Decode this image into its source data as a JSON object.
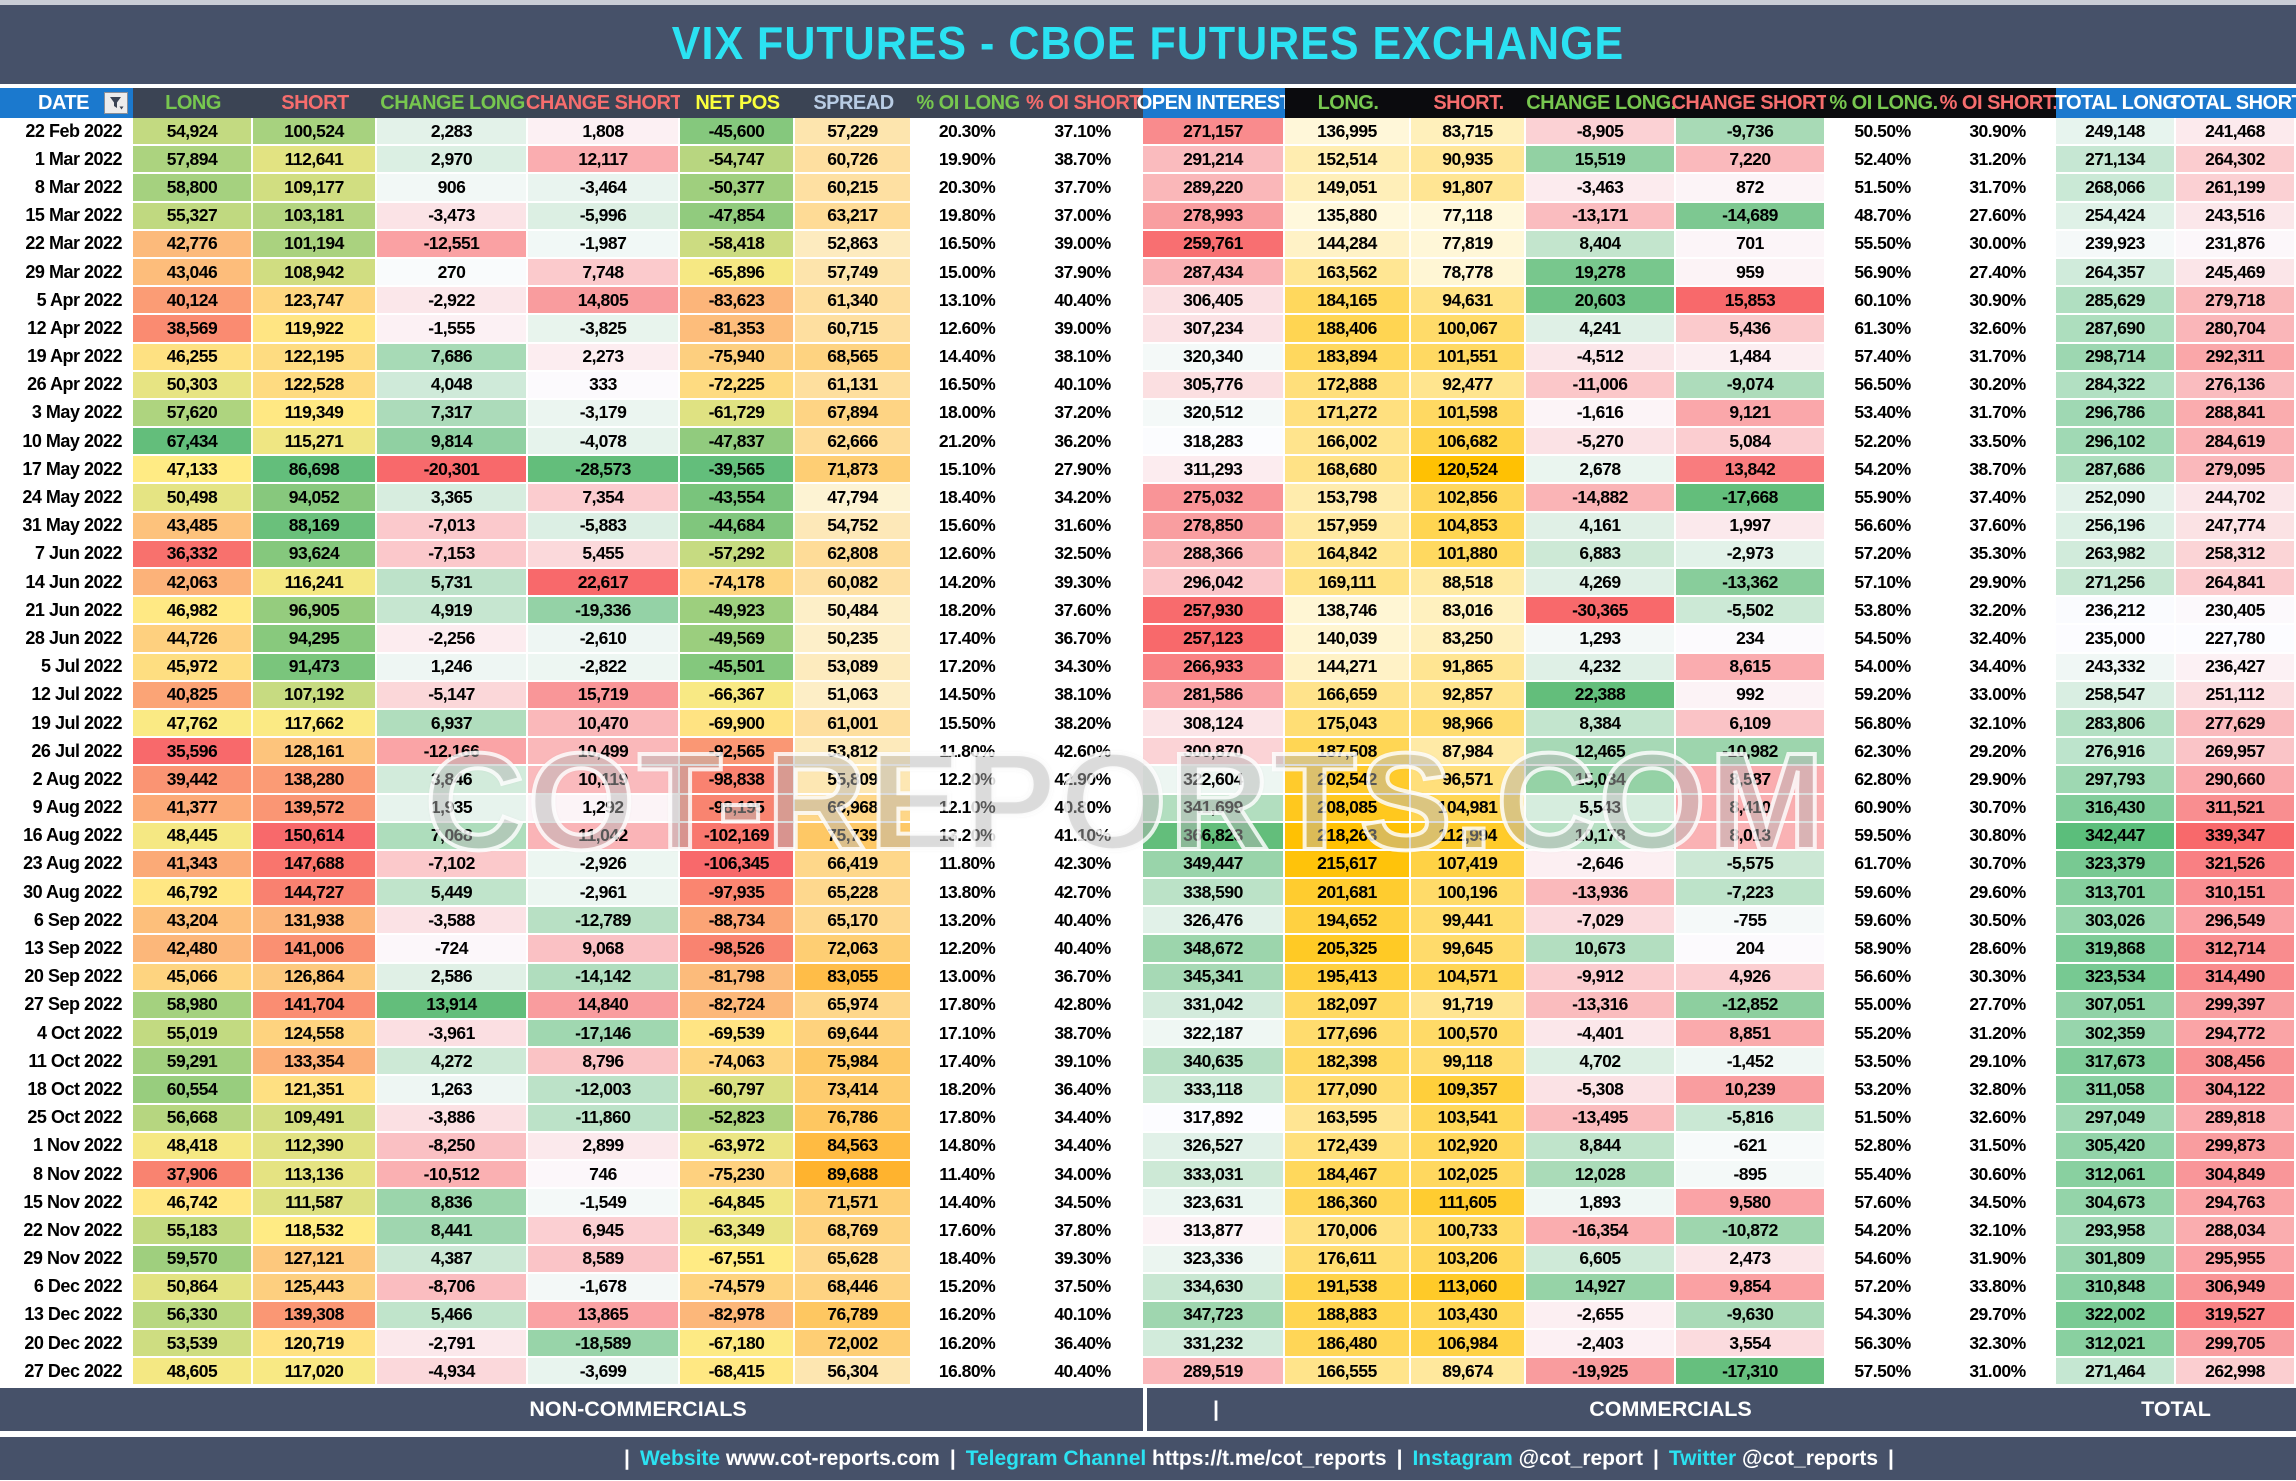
{
  "title": "VIX FUTURES - CBOE FUTURES EXCHANGE",
  "watermark": "COT-REPORTS.COM",
  "groups": {
    "noncommercials": "NON-COMMERCIALS",
    "divider": "|",
    "commercials": "COMMERCIALS",
    "total": "TOTAL"
  },
  "columns": [
    {
      "key": "date",
      "label": "DATE"
    },
    {
      "key": "long",
      "label": "LONG"
    },
    {
      "key": "short",
      "label": "SHORT"
    },
    {
      "key": "chg_long",
      "label": "CHANGE LONG"
    },
    {
      "key": "chg_short",
      "label": "CHANGE SHORT"
    },
    {
      "key": "net_pos",
      "label": "NET POS"
    },
    {
      "key": "spread",
      "label": "SPREAD"
    },
    {
      "key": "pct_oi_long",
      "label": "% OI LONG"
    },
    {
      "key": "pct_oi_short",
      "label": "% OI SHORT"
    },
    {
      "key": "oi",
      "label": "OPEN INTEREST"
    },
    {
      "key": "c_long",
      "label": "LONG."
    },
    {
      "key": "c_short",
      "label": "SHORT."
    },
    {
      "key": "c_chg_long",
      "label": "CHANGE LONG."
    },
    {
      "key": "c_chg_short",
      "label": "CHANGE SHORT."
    },
    {
      "key": "c_pct_oi_long",
      "label": "% OI LONG."
    },
    {
      "key": "c_pct_oi_short",
      "label": "% OI SHORT."
    },
    {
      "key": "tot_long",
      "label": "TOTAL LONG"
    },
    {
      "key": "tot_short",
      "label": "TOTAL SHORT"
    }
  ],
  "footer_links": [
    {
      "label": "Website",
      "value": "www.cot-reports.com"
    },
    {
      "label": "Telegram Channel",
      "value": "https://t.me/cot_reports"
    },
    {
      "label": "Instagram",
      "value": "@cot_report"
    },
    {
      "label": "Twitter",
      "value": "@cot_reports"
    }
  ],
  "colors": {
    "accent_cyan": "#2BE2F2",
    "title_bar": "#465169",
    "header_slate": "#3B4454",
    "header_black": "#0B0B0E",
    "header_blue": "#1B79CE",
    "scale_red": "#F8696B",
    "scale_yellow": "#FFEB84",
    "scale_green": "#63BE7B",
    "scale_white": "#FCFCFF",
    "gold_low": "#FFF8DC",
    "gold_high": "#FFC103",
    "spread_low": "#FDF3D3",
    "spread_high": "#FFB32E",
    "total_green": "#5BBE7B"
  },
  "rows": [
    [
      "22 Feb 2022",
      54924,
      100524,
      2283,
      1808,
      -45600,
      57229,
      "20.30%",
      "37.10%",
      271157,
      136995,
      83715,
      -8905,
      -9736,
      "50.50%",
      "30.90%",
      249148,
      241468
    ],
    [
      "1 Mar 2022",
      57894,
      112641,
      2970,
      12117,
      -54747,
      60726,
      "19.90%",
      "38.70%",
      291214,
      152514,
      90935,
      15519,
      7220,
      "52.40%",
      "31.20%",
      271134,
      264302
    ],
    [
      "8 Mar 2022",
      58800,
      109177,
      906,
      -3464,
      -50377,
      60215,
      "20.30%",
      "37.70%",
      289220,
      149051,
      91807,
      -3463,
      872,
      "51.50%",
      "31.70%",
      268066,
      261199
    ],
    [
      "15 Mar 2022",
      55327,
      103181,
      -3473,
      -5996,
      -47854,
      63217,
      "19.80%",
      "37.00%",
      278993,
      135880,
      77118,
      -13171,
      -14689,
      "48.70%",
      "27.60%",
      254424,
      243516
    ],
    [
      "22 Mar 2022",
      42776,
      101194,
      -12551,
      -1987,
      -58418,
      52863,
      "16.50%",
      "39.00%",
      259761,
      144284,
      77819,
      8404,
      701,
      "55.50%",
      "30.00%",
      239923,
      231876
    ],
    [
      "29 Mar 2022",
      43046,
      108942,
      270,
      7748,
      -65896,
      57749,
      "15.00%",
      "37.90%",
      287434,
      163562,
      78778,
      19278,
      959,
      "56.90%",
      "27.40%",
      264357,
      245469
    ],
    [
      "5 Apr 2022",
      40124,
      123747,
      -2922,
      14805,
      -83623,
      61340,
      "13.10%",
      "40.40%",
      306405,
      184165,
      94631,
      20603,
      15853,
      "60.10%",
      "30.90%",
      285629,
      279718
    ],
    [
      "12 Apr 2022",
      38569,
      119922,
      -1555,
      -3825,
      -81353,
      60715,
      "12.60%",
      "39.00%",
      307234,
      188406,
      100067,
      4241,
      5436,
      "61.30%",
      "32.60%",
      287690,
      280704
    ],
    [
      "19 Apr 2022",
      46255,
      122195,
      7686,
      2273,
      -75940,
      68565,
      "14.40%",
      "38.10%",
      320340,
      183894,
      101551,
      -4512,
      1484,
      "57.40%",
      "31.70%",
      298714,
      292311
    ],
    [
      "26 Apr 2022",
      50303,
      122528,
      4048,
      333,
      -72225,
      61131,
      "16.50%",
      "40.10%",
      305776,
      172888,
      92477,
      -11006,
      -9074,
      "56.50%",
      "30.20%",
      284322,
      276136
    ],
    [
      "3 May 2022",
      57620,
      119349,
      7317,
      -3179,
      -61729,
      67894,
      "18.00%",
      "37.20%",
      320512,
      171272,
      101598,
      -1616,
      9121,
      "53.40%",
      "31.70%",
      296786,
      288841
    ],
    [
      "10 May 2022",
      67434,
      115271,
      9814,
      -4078,
      -47837,
      62666,
      "21.20%",
      "36.20%",
      318283,
      166002,
      106682,
      -5270,
      5084,
      "52.20%",
      "33.50%",
      296102,
      284619
    ],
    [
      "17 May 2022",
      47133,
      86698,
      -20301,
      -28573,
      -39565,
      71873,
      "15.10%",
      "27.90%",
      311293,
      168680,
      120524,
      2678,
      13842,
      "54.20%",
      "38.70%",
      287686,
      279095
    ],
    [
      "24 May 2022",
      50498,
      94052,
      3365,
      7354,
      -43554,
      47794,
      "18.40%",
      "34.20%",
      275032,
      153798,
      102856,
      -14882,
      -17668,
      "55.90%",
      "37.40%",
      252090,
      244702
    ],
    [
      "31 May 2022",
      43485,
      88169,
      -7013,
      -5883,
      -44684,
      54752,
      "15.60%",
      "31.60%",
      278850,
      157959,
      104853,
      4161,
      1997,
      "56.60%",
      "37.60%",
      256196,
      247774
    ],
    [
      "7 Jun 2022",
      36332,
      93624,
      -7153,
      5455,
      -57292,
      62808,
      "12.60%",
      "32.50%",
      288366,
      164842,
      101880,
      6883,
      -2973,
      "57.20%",
      "35.30%",
      263982,
      258312
    ],
    [
      "14 Jun 2022",
      42063,
      116241,
      5731,
      22617,
      -74178,
      60082,
      "14.20%",
      "39.30%",
      296042,
      169111,
      88518,
      4269,
      -13362,
      "57.10%",
      "29.90%",
      271256,
      264841
    ],
    [
      "21 Jun 2022",
      46982,
      96905,
      4919,
      -19336,
      -49923,
      50484,
      "18.20%",
      "37.60%",
      257930,
      138746,
      83016,
      -30365,
      -5502,
      "53.80%",
      "32.20%",
      236212,
      230405
    ],
    [
      "28 Jun 2022",
      44726,
      94295,
      -2256,
      -2610,
      -49569,
      50235,
      "17.40%",
      "36.70%",
      257123,
      140039,
      83250,
      1293,
      234,
      "54.50%",
      "32.40%",
      235000,
      227780
    ],
    [
      "5 Jul 2022",
      45972,
      91473,
      1246,
      -2822,
      -45501,
      53089,
      "17.20%",
      "34.30%",
      266933,
      144271,
      91865,
      4232,
      8615,
      "54.00%",
      "34.40%",
      243332,
      236427
    ],
    [
      "12 Jul 2022",
      40825,
      107192,
      -5147,
      15719,
      -66367,
      51063,
      "14.50%",
      "38.10%",
      281586,
      166659,
      92857,
      22388,
      992,
      "59.20%",
      "33.00%",
      258547,
      251112
    ],
    [
      "19 Jul 2022",
      47762,
      117662,
      6937,
      10470,
      -69900,
      61001,
      "15.50%",
      "38.20%",
      308124,
      175043,
      98966,
      8384,
      6109,
      "56.80%",
      "32.10%",
      283806,
      277629
    ],
    [
      "26 Jul 2022",
      35596,
      128161,
      -12166,
      10499,
      -92565,
      53812,
      "11.80%",
      "42.60%",
      300870,
      187508,
      87984,
      12465,
      -10982,
      "62.30%",
      "29.20%",
      276916,
      269957
    ],
    [
      "2 Aug 2022",
      39442,
      138280,
      3846,
      10119,
      -98838,
      55809,
      "12.20%",
      "42.90%",
      322604,
      202542,
      96571,
      15034,
      8587,
      "62.80%",
      "29.90%",
      297793,
      290660
    ],
    [
      "9 Aug 2022",
      41377,
      139572,
      1935,
      1292,
      -98195,
      66968,
      "12.10%",
      "40.80%",
      341699,
      208085,
      104981,
      5543,
      8410,
      "60.90%",
      "30.70%",
      316430,
      311521
    ],
    [
      "16 Aug 2022",
      48445,
      150614,
      7068,
      11042,
      -102169,
      75739,
      "13.20%",
      "41.10%",
      366823,
      218263,
      112994,
      10178,
      8013,
      "59.50%",
      "30.80%",
      342447,
      339347
    ],
    [
      "23 Aug 2022",
      41343,
      147688,
      -7102,
      -2926,
      -106345,
      66419,
      "11.80%",
      "42.30%",
      349447,
      215617,
      107419,
      -2646,
      -5575,
      "61.70%",
      "30.70%",
      323379,
      321526
    ],
    [
      "30 Aug 2022",
      46792,
      144727,
      5449,
      -2961,
      -97935,
      65228,
      "13.80%",
      "42.70%",
      338590,
      201681,
      100196,
      -13936,
      -7223,
      "59.60%",
      "29.60%",
      313701,
      310151
    ],
    [
      "6 Sep 2022",
      43204,
      131938,
      -3588,
      -12789,
      -88734,
      65170,
      "13.20%",
      "40.40%",
      326476,
      194652,
      99441,
      -7029,
      -755,
      "59.60%",
      "30.50%",
      303026,
      296549
    ],
    [
      "13 Sep 2022",
      42480,
      141006,
      -724,
      9068,
      -98526,
      72063,
      "12.20%",
      "40.40%",
      348672,
      205325,
      99645,
      10673,
      204,
      "58.90%",
      "28.60%",
      319868,
      312714
    ],
    [
      "20 Sep 2022",
      45066,
      126864,
      2586,
      -14142,
      -81798,
      83055,
      "13.00%",
      "36.70%",
      345341,
      195413,
      104571,
      -9912,
      4926,
      "56.60%",
      "30.30%",
      323534,
      314490
    ],
    [
      "27 Sep 2022",
      58980,
      141704,
      13914,
      14840,
      -82724,
      65974,
      "17.80%",
      "42.80%",
      331042,
      182097,
      91719,
      -13316,
      -12852,
      "55.00%",
      "27.70%",
      307051,
      299397
    ],
    [
      "4 Oct 2022",
      55019,
      124558,
      -3961,
      -17146,
      -69539,
      69644,
      "17.10%",
      "38.70%",
      322187,
      177696,
      100570,
      -4401,
      8851,
      "55.20%",
      "31.20%",
      302359,
      294772
    ],
    [
      "11 Oct 2022",
      59291,
      133354,
      4272,
      8796,
      -74063,
      75984,
      "17.40%",
      "39.10%",
      340635,
      182398,
      99118,
      4702,
      -1452,
      "53.50%",
      "29.10%",
      317673,
      308456
    ],
    [
      "18 Oct 2022",
      60554,
      121351,
      1263,
      -12003,
      -60797,
      73414,
      "18.20%",
      "36.40%",
      333118,
      177090,
      109357,
      -5308,
      10239,
      "53.20%",
      "32.80%",
      311058,
      304122
    ],
    [
      "25 Oct 2022",
      56668,
      109491,
      -3886,
      -11860,
      -52823,
      76786,
      "17.80%",
      "34.40%",
      317892,
      163595,
      103541,
      -13495,
      -5816,
      "51.50%",
      "32.60%",
      297049,
      289818
    ],
    [
      "1 Nov 2022",
      48418,
      112390,
      -8250,
      2899,
      -63972,
      84563,
      "14.80%",
      "34.40%",
      326527,
      172439,
      102920,
      8844,
      -621,
      "52.80%",
      "31.50%",
      305420,
      299873
    ],
    [
      "8 Nov 2022",
      37906,
      113136,
      -10512,
      746,
      -75230,
      89688,
      "11.40%",
      "34.00%",
      333031,
      184467,
      102025,
      12028,
      -895,
      "55.40%",
      "30.60%",
      312061,
      304849
    ],
    [
      "15 Nov 2022",
      46742,
      111587,
      8836,
      -1549,
      -64845,
      71571,
      "14.40%",
      "34.50%",
      323631,
      186360,
      111605,
      1893,
      9580,
      "57.60%",
      "34.50%",
      304673,
      294763
    ],
    [
      "22 Nov 2022",
      55183,
      118532,
      8441,
      6945,
      -63349,
      68769,
      "17.60%",
      "37.80%",
      313877,
      170006,
      100733,
      -16354,
      -10872,
      "54.20%",
      "32.10%",
      293958,
      288034
    ],
    [
      "29 Nov 2022",
      59570,
      127121,
      4387,
      8589,
      -67551,
      65628,
      "18.40%",
      "39.30%",
      323336,
      176611,
      103206,
      6605,
      2473,
      "54.60%",
      "31.90%",
      301809,
      295955
    ],
    [
      "6 Dec 2022",
      50864,
      125443,
      -8706,
      -1678,
      -74579,
      68446,
      "15.20%",
      "37.50%",
      334630,
      191538,
      113060,
      14927,
      9854,
      "57.20%",
      "33.80%",
      310848,
      306949
    ],
    [
      "13 Dec 2022",
      56330,
      139308,
      5466,
      13865,
      -82978,
      76789,
      "16.20%",
      "40.10%",
      347723,
      188883,
      103430,
      -2655,
      -9630,
      "54.30%",
      "29.70%",
      322002,
      319527
    ],
    [
      "20 Dec 2022",
      53539,
      120719,
      -2791,
      -18589,
      -67180,
      72002,
      "16.20%",
      "36.40%",
      331232,
      186480,
      106984,
      -2403,
      3554,
      "56.30%",
      "32.30%",
      312021,
      299705
    ],
    [
      "27 Dec 2022",
      48605,
      117020,
      -4934,
      -3699,
      -68415,
      56304,
      "16.80%",
      "40.40%",
      289519,
      166555,
      89674,
      -19925,
      -17310,
      "57.50%",
      "31.00%",
      271464,
      262998
    ]
  ]
}
